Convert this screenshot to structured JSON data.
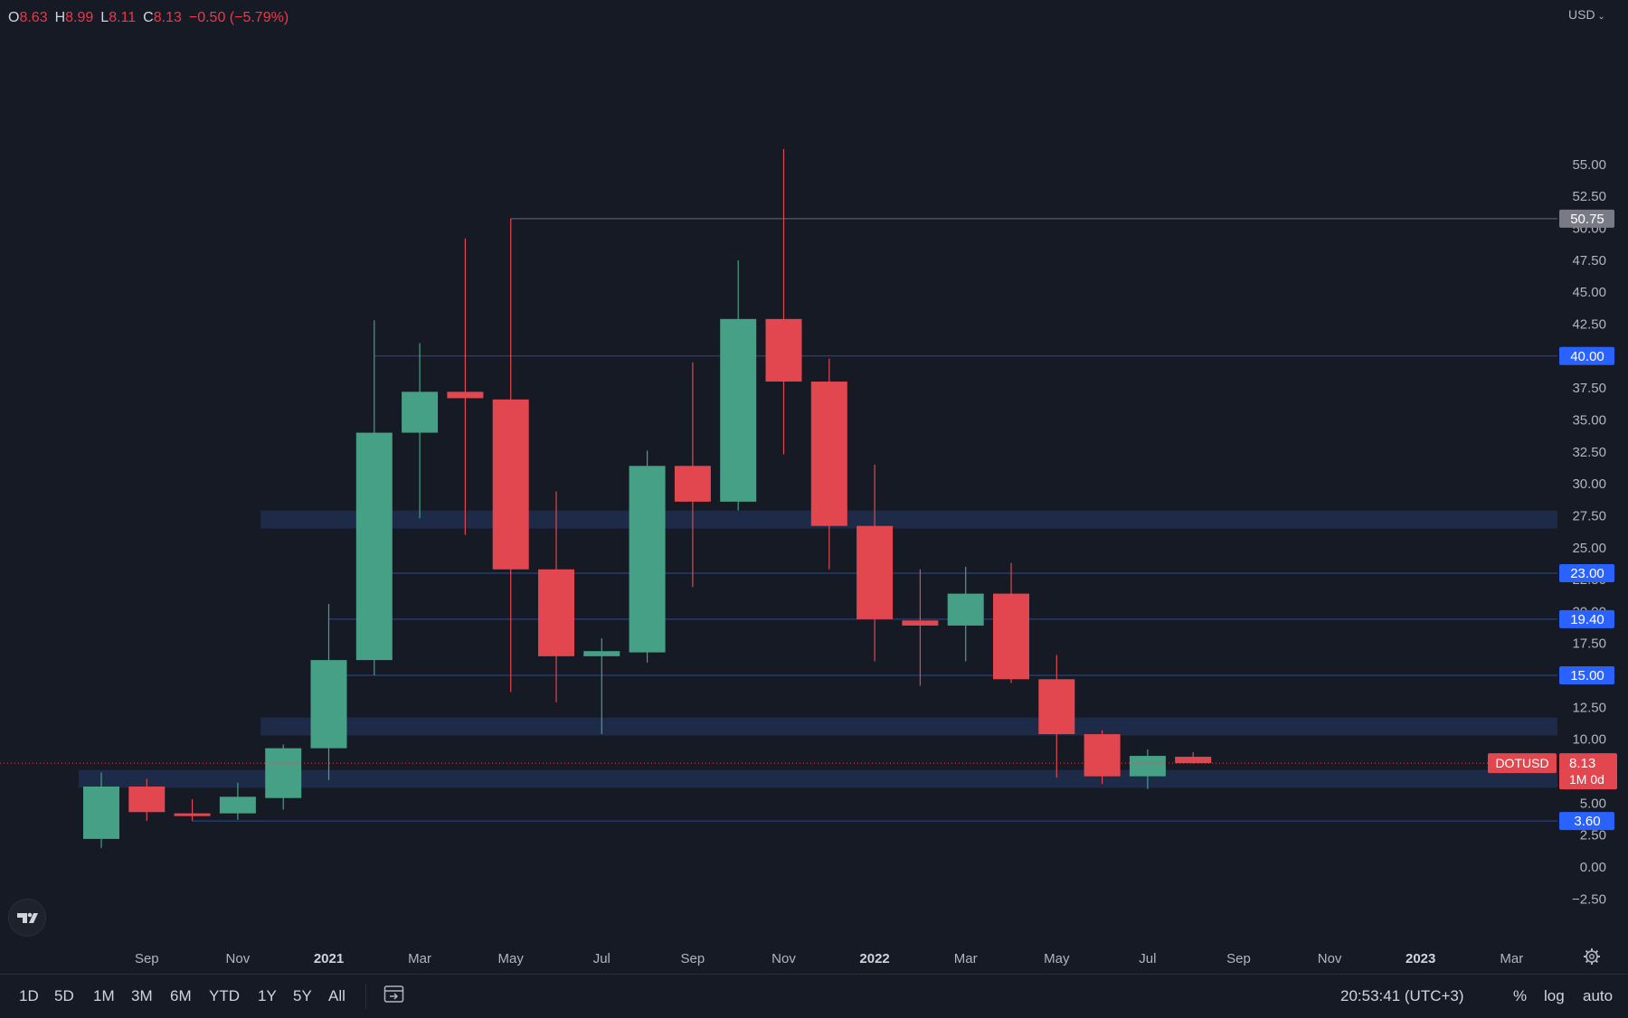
{
  "header": {
    "ohlc": [
      {
        "key": "O",
        "value": "8.63"
      },
      {
        "key": "H",
        "value": "8.99"
      },
      {
        "key": "L",
        "value": "8.11"
      },
      {
        "key": "C",
        "value": "8.13"
      }
    ],
    "change": "−0.50 (−5.79%)",
    "currency": "USD"
  },
  "toolbar": {
    "ranges": [
      "1D",
      "5D",
      "1M",
      "3M",
      "6M",
      "YTD",
      "1Y",
      "5Y",
      "All"
    ],
    "clock": "20:53:41 (UTC+3)",
    "percent": "%",
    "log": "log",
    "auto": "auto"
  },
  "icons": {
    "logo": "tradingview-logo-icon",
    "calendar": "goto-date-icon",
    "settings": "gear-icon"
  },
  "colors": {
    "up": "#45a085",
    "down": "#e2474f",
    "zone": "#1f2c4a",
    "level_label": "#2962ff",
    "background": "#161a25"
  },
  "chart_data": {
    "type": "candlestick",
    "symbol": "DOTUSD",
    "interval_label": "1M 0d",
    "last_price": "8.13",
    "ylim": [
      -3.5,
      57.5
    ],
    "y_ticks": [
      -2.5,
      0,
      2.5,
      5,
      7.5,
      10,
      12.5,
      15,
      17.5,
      20,
      22.5,
      25,
      27.5,
      30,
      32.5,
      35,
      37.5,
      40,
      42.5,
      45,
      47.5,
      50,
      52.5,
      55
    ],
    "x_labels": [
      {
        "label": "Sep",
        "bold": false
      },
      {
        "label": "Nov",
        "bold": false
      },
      {
        "label": "2021",
        "bold": true
      },
      {
        "label": "Mar",
        "bold": false
      },
      {
        "label": "May",
        "bold": false
      },
      {
        "label": "Jul",
        "bold": false
      },
      {
        "label": "Sep",
        "bold": false
      },
      {
        "label": "Nov",
        "bold": false
      },
      {
        "label": "2022",
        "bold": true
      },
      {
        "label": "Mar",
        "bold": false
      },
      {
        "label": "May",
        "bold": false
      },
      {
        "label": "Jul",
        "bold": false
      },
      {
        "label": "Sep",
        "bold": false
      },
      {
        "label": "Nov",
        "bold": false
      },
      {
        "label": "2023",
        "bold": true
      },
      {
        "label": "Mar",
        "bold": false
      }
    ],
    "candles": [
      {
        "month": "2020-08",
        "open": 2.2,
        "high": 7.4,
        "low": 1.5,
        "close": 6.3
      },
      {
        "month": "2020-09",
        "open": 6.3,
        "high": 6.9,
        "low": 3.6,
        "close": 4.3
      },
      {
        "month": "2020-10",
        "open": 4.2,
        "high": 5.3,
        "low": 3.6,
        "close": 4.1
      },
      {
        "month": "2020-11",
        "open": 4.2,
        "high": 6.6,
        "low": 3.7,
        "close": 5.5
      },
      {
        "month": "2020-12",
        "open": 5.4,
        "high": 9.6,
        "low": 4.5,
        "close": 9.3
      },
      {
        "month": "2021-01",
        "open": 9.3,
        "high": 20.6,
        "low": 6.8,
        "close": 16.2
      },
      {
        "month": "2021-02",
        "open": 16.2,
        "high": 42.8,
        "low": 15.0,
        "close": 34.0
      },
      {
        "month": "2021-03",
        "open": 34.0,
        "high": 41.0,
        "low": 27.3,
        "close": 37.2
      },
      {
        "month": "2021-04",
        "open": 37.2,
        "high": 49.2,
        "low": 26.0,
        "close": 36.7
      },
      {
        "month": "2021-05",
        "open": 36.6,
        "high": 50.75,
        "low": 13.7,
        "close": 23.3
      },
      {
        "month": "2021-06",
        "open": 23.3,
        "high": 29.4,
        "low": 12.9,
        "close": 16.5
      },
      {
        "month": "2021-07",
        "open": 16.5,
        "high": 17.9,
        "low": 10.4,
        "close": 16.9
      },
      {
        "month": "2021-08",
        "open": 16.8,
        "high": 32.6,
        "low": 16.0,
        "close": 31.4
      },
      {
        "month": "2021-09",
        "open": 31.4,
        "high": 39.5,
        "low": 21.9,
        "close": 28.6
      },
      {
        "month": "2021-10",
        "open": 28.6,
        "high": 47.5,
        "low": 27.9,
        "close": 42.9
      },
      {
        "month": "2021-11",
        "open": 42.9,
        "high": 56.2,
        "low": 32.3,
        "close": 38.0
      },
      {
        "month": "2021-12",
        "open": 38.0,
        "high": 39.8,
        "low": 23.3,
        "close": 26.7
      },
      {
        "month": "2022-01",
        "open": 26.7,
        "high": 31.5,
        "low": 16.1,
        "close": 19.4
      },
      {
        "month": "2022-02",
        "open": 19.3,
        "high": 23.3,
        "low": 14.2,
        "close": 18.9
      },
      {
        "month": "2022-03",
        "open": 18.9,
        "high": 23.5,
        "low": 16.1,
        "close": 21.4
      },
      {
        "month": "2022-04",
        "open": 21.4,
        "high": 23.8,
        "low": 14.4,
        "close": 14.7
      },
      {
        "month": "2022-05",
        "open": 14.7,
        "high": 16.6,
        "low": 7.0,
        "close": 10.4
      },
      {
        "month": "2022-06",
        "open": 10.4,
        "high": 10.7,
        "low": 6.5,
        "close": 7.1
      },
      {
        "month": "2022-07",
        "open": 7.1,
        "high": 9.2,
        "low": 6.1,
        "close": 8.7
      },
      {
        "month": "2022-08",
        "open": 8.63,
        "high": 8.99,
        "low": 8.11,
        "close": 8.13
      }
    ],
    "levels": [
      {
        "value": 50.75,
        "label": "50.75",
        "style": "gray"
      },
      {
        "value": 40.0,
        "label": "40.00",
        "style": "blue"
      },
      {
        "value": 23.0,
        "label": "23.00",
        "style": "blue"
      },
      {
        "value": 19.4,
        "label": "19.40",
        "style": "blue"
      },
      {
        "value": 15.0,
        "label": "15.00",
        "style": "blue"
      },
      {
        "value": 3.6,
        "label": "3.60",
        "style": "blue"
      }
    ],
    "zones": [
      {
        "from_month": "2020-12",
        "low": 26.5,
        "high": 27.9
      },
      {
        "from_month": "2020-12",
        "low": 10.3,
        "high": 11.7
      },
      {
        "from_month": "2020-08",
        "low": 6.2,
        "high": 7.6
      }
    ]
  }
}
